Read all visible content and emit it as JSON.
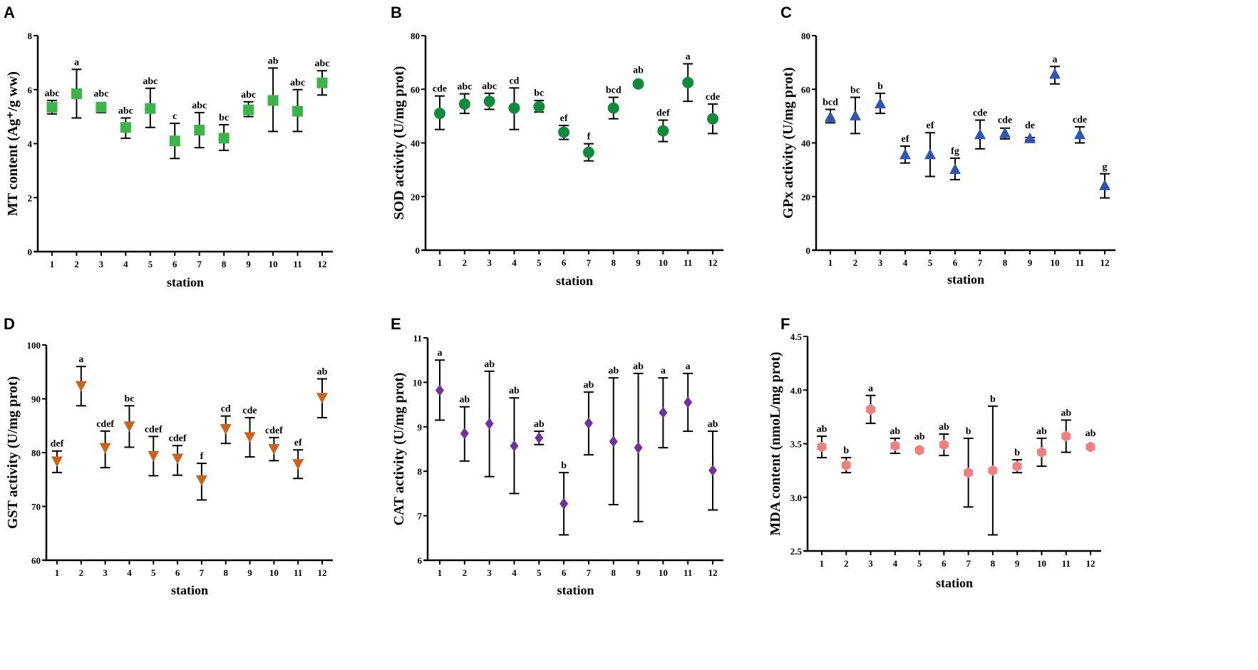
{
  "chart_data": [
    {
      "panel": "A",
      "type": "scatter",
      "xlabel": "station",
      "ylabel": "MT content (Ag⁺/g ww)",
      "ylim": [
        0,
        8
      ],
      "yticks": [
        0,
        2,
        4,
        6,
        8
      ],
      "marker": "square",
      "color": "#3bb54a",
      "categories": [
        "1",
        "2",
        "3",
        "4",
        "5",
        "6",
        "7",
        "8",
        "9",
        "10",
        "11",
        "12"
      ],
      "values": [
        5.35,
        5.85,
        5.35,
        4.6,
        5.3,
        4.1,
        4.5,
        4.2,
        5.25,
        5.6,
        5.2,
        6.25
      ],
      "error_low": [
        5.1,
        4.95,
        5.15,
        4.2,
        4.6,
        3.45,
        3.85,
        3.75,
        5.0,
        4.45,
        4.45,
        5.8
      ],
      "error_high": [
        5.6,
        6.75,
        5.5,
        4.95,
        6.05,
        4.75,
        5.15,
        4.7,
        5.55,
        6.8,
        6.0,
        6.7
      ],
      "letters": [
        "abc",
        "a",
        "abc",
        "abc",
        "abc",
        "c",
        "abc",
        "bc",
        "abc",
        "ab",
        "abc",
        "abc"
      ]
    },
    {
      "panel": "B",
      "type": "scatter",
      "xlabel": "station",
      "ylabel": "SOD activity (U/mg prot)",
      "ylim": [
        0,
        80
      ],
      "yticks": [
        0,
        20,
        40,
        60,
        80
      ],
      "marker": "circle",
      "color": "#128a3c",
      "categories": [
        "1",
        "2",
        "3",
        "4",
        "5",
        "6",
        "7",
        "8",
        "9",
        "10",
        "11",
        "12"
      ],
      "values": [
        51,
        54.5,
        55.5,
        53,
        53.5,
        44,
        36.5,
        53,
        62,
        44.5,
        62.5,
        49
      ],
      "error_low": [
        45,
        51,
        52.5,
        45,
        51.5,
        41.3,
        33.3,
        49,
        62,
        40.5,
        55.5,
        43.5
      ],
      "error_high": [
        57.5,
        58.3,
        58.5,
        60.5,
        55.8,
        46.5,
        39.7,
        57,
        62,
        48.5,
        69.5,
        54.5
      ],
      "letters": [
        "cde",
        "abc",
        "abc",
        "cd",
        "bc",
        "ef",
        "f",
        "bcd",
        "ab",
        "def",
        "a",
        "cde"
      ]
    },
    {
      "panel": "C",
      "type": "scatter",
      "xlabel": "station",
      "ylabel": "GPx activity (U/mg prot)",
      "ylim": [
        0,
        80
      ],
      "yticks": [
        0,
        20,
        40,
        60,
        80
      ],
      "marker": "triangle-up",
      "color": "#2f55b0",
      "categories": [
        "1",
        "2",
        "3",
        "4",
        "5",
        "6",
        "7",
        "8",
        "9",
        "10",
        "11",
        "12"
      ],
      "values": [
        49.5,
        50,
        54.5,
        35.5,
        35.5,
        30,
        43,
        43.5,
        41.5,
        65.5,
        43,
        24
      ],
      "error_low": [
        47.5,
        43.5,
        51,
        32.5,
        27.5,
        26.3,
        37.8,
        41.5,
        41,
        62,
        40,
        19.5
      ],
      "error_high": [
        52.5,
        57,
        58.5,
        38.8,
        43.8,
        34.3,
        48.5,
        45.5,
        42,
        68.5,
        46,
        28.5
      ],
      "letters": [
        "bcd",
        "bc",
        "b",
        "ef",
        "ef",
        "fg",
        "cde",
        "cde",
        "de",
        "a",
        "cde",
        "g"
      ]
    },
    {
      "panel": "D",
      "type": "scatter",
      "xlabel": "station",
      "ylabel": "GST activity (U/mg prot)",
      "ylim": [
        60,
        100
      ],
      "yticks": [
        60,
        70,
        80,
        90,
        100
      ],
      "marker": "triangle-down",
      "color": "#c8641e",
      "categories": [
        "1",
        "2",
        "3",
        "4",
        "5",
        "6",
        "7",
        "8",
        "9",
        "10",
        "11",
        "12"
      ],
      "values": [
        78.5,
        92.5,
        81,
        85,
        79.5,
        79,
        75,
        84.5,
        83,
        80.8,
        78,
        90.3
      ],
      "error_low": [
        76.3,
        88.7,
        77.2,
        81,
        75.7,
        75.8,
        71.2,
        81.7,
        79.2,
        78.5,
        75.2,
        86.5
      ],
      "error_high": [
        80.3,
        96,
        84,
        88.7,
        83,
        81.3,
        78,
        86.8,
        86.5,
        82.8,
        80.5,
        93.7
      ],
      "letters": [
        "def",
        "a",
        "cdef",
        "bc",
        "cdef",
        "cdef",
        "f",
        "cd",
        "cde",
        "cdef",
        "ef",
        "ab"
      ]
    },
    {
      "panel": "E",
      "type": "scatter",
      "xlabel": "station",
      "ylabel": "CAT activity (U/mg prot)",
      "ylim": [
        6,
        11
      ],
      "yticks": [
        6,
        7,
        8,
        9,
        10,
        11
      ],
      "marker": "diamond",
      "color": "#7030a0",
      "categories": [
        "1",
        "2",
        "3",
        "4",
        "5",
        "6",
        "7",
        "8",
        "9",
        "10",
        "11",
        "12"
      ],
      "values": [
        9.82,
        8.85,
        9.07,
        8.57,
        8.75,
        7.27,
        9.08,
        8.67,
        8.53,
        9.32,
        9.55,
        8.02
      ],
      "error_low": [
        9.15,
        8.23,
        7.88,
        7.5,
        8.6,
        6.57,
        8.37,
        7.25,
        6.87,
        8.53,
        8.9,
        7.13
      ],
      "error_high": [
        10.5,
        9.45,
        10.25,
        9.65,
        8.9,
        7.97,
        9.78,
        10.1,
        10.2,
        10.1,
        10.2,
        8.9
      ],
      "letters": [
        "a",
        "ab",
        "ab",
        "ab",
        "ab",
        "b",
        "ab",
        "ab",
        "ab",
        "a",
        "a",
        "ab"
      ]
    },
    {
      "panel": "F",
      "type": "scatter",
      "xlabel": "station",
      "ylabel": "MDA content (nmoL/mg prot)",
      "ylim": [
        2.5,
        4.5
      ],
      "yticks": [
        2.5,
        3.0,
        3.5,
        4.0,
        4.5
      ],
      "marker": "hexagon",
      "color": "#f08080",
      "categories": [
        "1",
        "2",
        "3",
        "4",
        "5",
        "6",
        "7",
        "8",
        "9",
        "10",
        "11",
        "12"
      ],
      "values": [
        3.47,
        3.3,
        3.82,
        3.48,
        3.44,
        3.49,
        3.23,
        3.25,
        3.29,
        3.42,
        3.57,
        3.47
      ],
      "error_low": [
        3.37,
        3.23,
        3.69,
        3.41,
        3.44,
        3.39,
        2.91,
        2.65,
        3.23,
        3.29,
        3.42,
        3.47
      ],
      "error_high": [
        3.57,
        3.37,
        3.95,
        3.55,
        3.44,
        3.59,
        3.55,
        3.85,
        3.35,
        3.55,
        3.72,
        3.47
      ],
      "letters": [
        "ab",
        "b",
        "a",
        "ab",
        "ab",
        "ab",
        "b",
        "b",
        "b",
        "ab",
        "ab",
        "ab"
      ]
    }
  ]
}
